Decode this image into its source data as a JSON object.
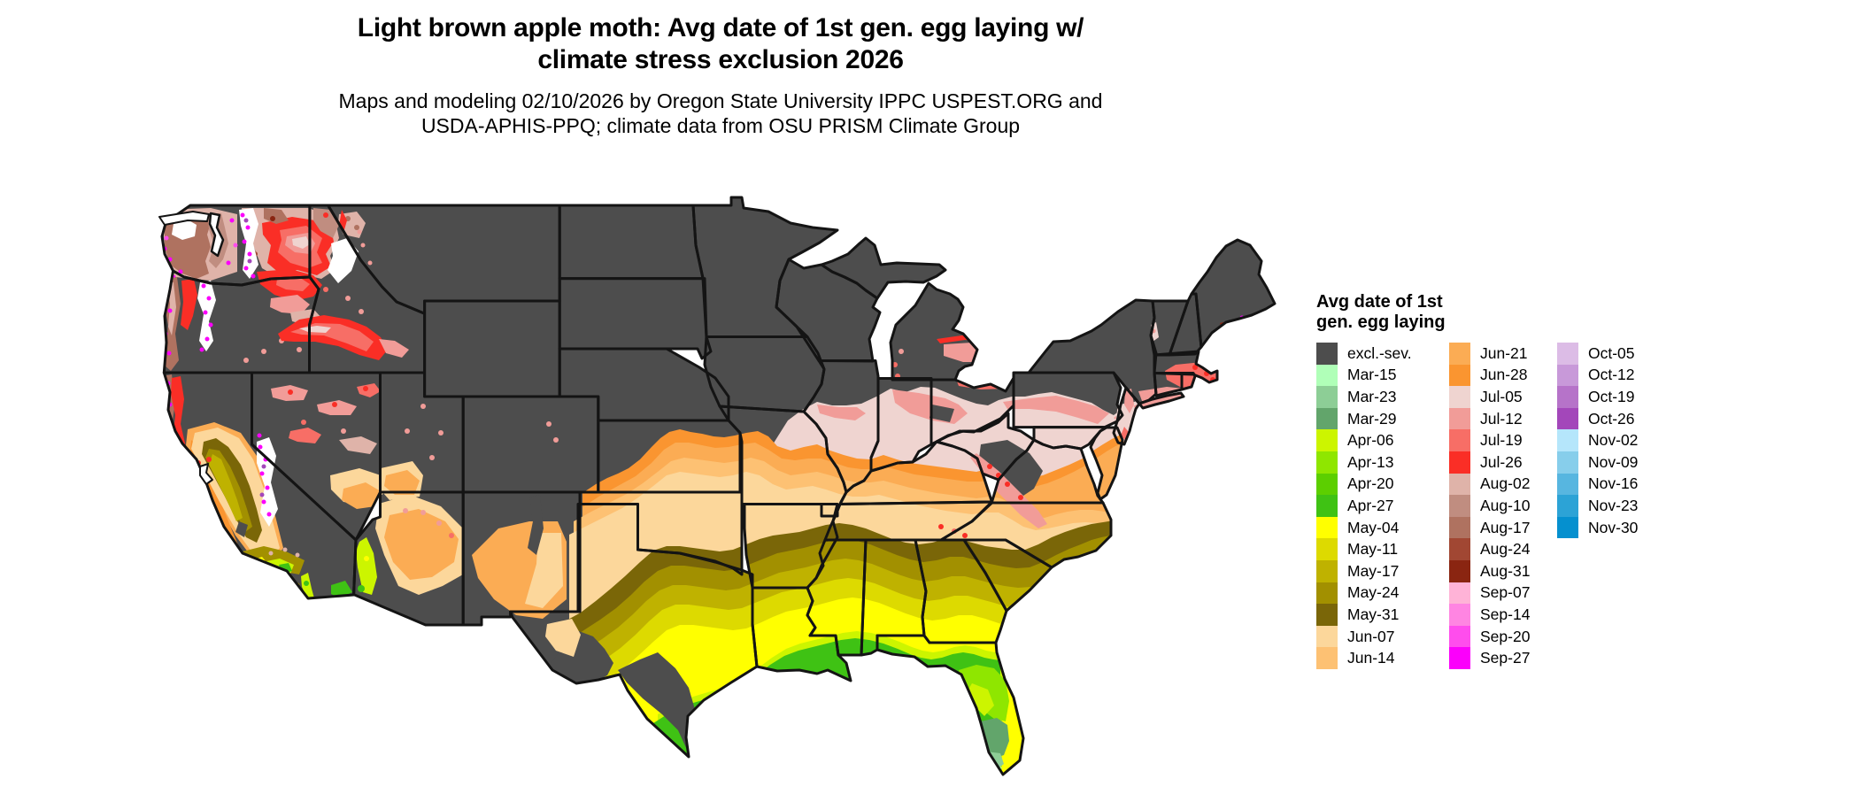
{
  "title": {
    "line1": "Light brown apple moth: Avg date of 1st gen. egg laying w/",
    "line2": "climate stress exclusion 2026"
  },
  "subtitle": {
    "line1": "Maps and modeling 02/10/2026 by Oregon State University IPPC USPEST.ORG and",
    "line2": "USDA-APHIS-PPQ; climate data from OSU PRISM Climate Group"
  },
  "legend": {
    "title_line1": "Avg date of 1st",
    "title_line2": "gen. egg laying",
    "columns": [
      [
        {
          "label": "excl.-sev.",
          "color": "#4D4D4D"
        },
        {
          "label": "Mar-15",
          "color": "#B0FFB8"
        },
        {
          "label": "Mar-23",
          "color": "#8DCE96"
        },
        {
          "label": "Mar-29",
          "color": "#62A56B"
        },
        {
          "label": "Apr-06",
          "color": "#CCF500"
        },
        {
          "label": "Apr-13",
          "color": "#8FE600"
        },
        {
          "label": "Apr-20",
          "color": "#5CCF00"
        },
        {
          "label": "Apr-27",
          "color": "#3FC214"
        },
        {
          "label": "May-04",
          "color": "#FFFF00"
        },
        {
          "label": "May-11",
          "color": "#DDDA00"
        },
        {
          "label": "May-17",
          "color": "#BFB200"
        },
        {
          "label": "May-24",
          "color": "#A29000"
        },
        {
          "label": "May-31",
          "color": "#7A6608"
        },
        {
          "label": "Jun-07",
          "color": "#FCD79B"
        },
        {
          "label": "Jun-14",
          "color": "#FDC173"
        }
      ],
      [
        {
          "label": "Jun-21",
          "color": "#FBAC54"
        },
        {
          "label": "Jun-28",
          "color": "#FA9530"
        },
        {
          "label": "Jul-05",
          "color": "#EFD4D0"
        },
        {
          "label": "Jul-12",
          "color": "#F19C98"
        },
        {
          "label": "Jul-19",
          "color": "#F76E66"
        },
        {
          "label": "Jul-26",
          "color": "#FA2E26"
        },
        {
          "label": "Aug-02",
          "color": "#DFB3A9"
        },
        {
          "label": "Aug-10",
          "color": "#C08D80"
        },
        {
          "label": "Aug-17",
          "color": "#AF7260"
        },
        {
          "label": "Aug-24",
          "color": "#A14733"
        },
        {
          "label": "Aug-31",
          "color": "#8A2511"
        },
        {
          "label": "Sep-07",
          "color": "#FFB3D7"
        },
        {
          "label": "Sep-14",
          "color": "#FF85E2"
        },
        {
          "label": "Sep-20",
          "color": "#FF4DED"
        },
        {
          "label": "Sep-27",
          "color": "#FB00FB"
        }
      ],
      [
        {
          "label": "Oct-05",
          "color": "#DCBCE6"
        },
        {
          "label": "Oct-12",
          "color": "#C899D9"
        },
        {
          "label": "Oct-19",
          "color": "#B673C9"
        },
        {
          "label": "Oct-26",
          "color": "#A347BA"
        },
        {
          "label": "Nov-02",
          "color": "#B5E6FB"
        },
        {
          "label": "Nov-09",
          "color": "#87CEEB"
        },
        {
          "label": "Nov-16",
          "color": "#57B6E0"
        },
        {
          "label": "Nov-23",
          "color": "#2CA3D6"
        },
        {
          "label": "Nov-30",
          "color": "#0590CF"
        }
      ]
    ]
  }
}
